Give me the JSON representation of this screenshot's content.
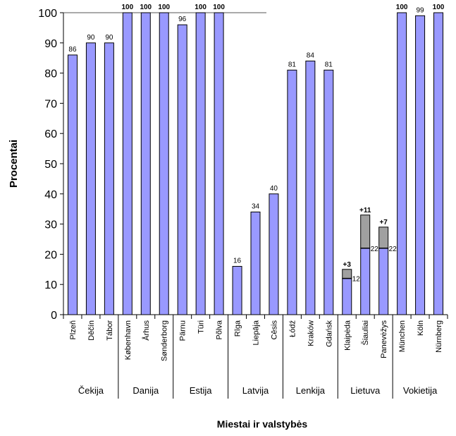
{
  "colors": {
    "bar": "#9999ff",
    "bar_stroke": "#000000",
    "addition": "#a0a0a0",
    "axis": "#000000"
  },
  "chart_data": {
    "type": "bar",
    "title": "",
    "xlabel": "Miestai ir valstybės",
    "ylabel": "Procentai",
    "ylim": [
      0,
      100
    ],
    "yticks": [
      "0",
      "10",
      "20",
      "30",
      "40",
      "50",
      "60",
      "70",
      "80",
      "90",
      "100"
    ],
    "grid": false,
    "categories": [
      "Plzeň",
      "Děčín",
      "Tábor",
      "København",
      "Århus",
      "Sønderborg",
      "Pärnu",
      "Türi",
      "Põlva",
      "Rīga",
      "Liepāja",
      "Cēsis",
      "Łódź",
      "Kraków",
      "Gdańsk",
      "Klaipėda",
      "Šiauliai",
      "Panevėžys",
      "München",
      "Köln",
      "Nürnberg"
    ],
    "values": [
      86,
      90,
      90,
      100,
      100,
      100,
      96,
      100,
      100,
      16,
      34,
      40,
      81,
      84,
      81,
      12,
      22,
      22,
      100,
      99,
      100
    ],
    "value_labels": [
      "86",
      "90",
      "90",
      "100",
      "100",
      "100",
      "96",
      "100",
      "100",
      "16",
      "34",
      "40",
      "81",
      "84",
      "81",
      "12",
      "22",
      "22",
      "100",
      "99",
      "100"
    ],
    "additions": [
      {
        "category": "Klaipėda",
        "base": 12,
        "add": 3,
        "label": "+3"
      },
      {
        "category": "Šiauliai",
        "base": 22,
        "add": 11,
        "label": "+11"
      },
      {
        "category": "Panevėžys",
        "base": 22,
        "add": 7,
        "label": "+7"
      }
    ],
    "groups": [
      {
        "name": "Čekija",
        "count": 3
      },
      {
        "name": "Danija",
        "count": 3
      },
      {
        "name": "Estija",
        "count": 3
      },
      {
        "name": "Latvija",
        "count": 3
      },
      {
        "name": "Lenkija",
        "count": 3
      },
      {
        "name": "Lietuva",
        "count": 3
      },
      {
        "name": "Vokietija",
        "count": 3
      }
    ]
  }
}
